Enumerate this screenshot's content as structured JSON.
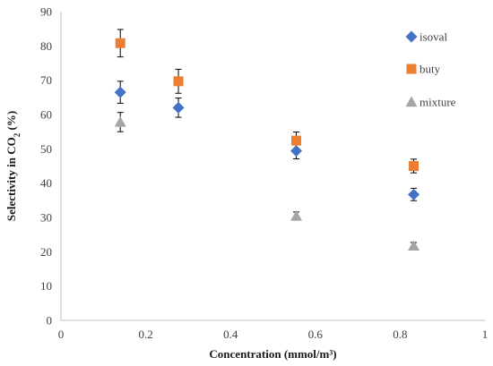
{
  "chart_data": {
    "type": "scatter",
    "xlabel": "Concentration (mmol/m³)",
    "ylabel_parts": [
      "Selectivity in CO",
      "2",
      " (%)"
    ],
    "xlim": [
      0,
      1
    ],
    "ylim": [
      0,
      90
    ],
    "x_ticks": [
      0,
      0.2,
      0.4,
      0.6,
      0.8,
      1
    ],
    "y_ticks": [
      0,
      10,
      20,
      30,
      40,
      50,
      60,
      70,
      80,
      90
    ],
    "x_tick_labels": [
      "0",
      "0.2",
      "0.4",
      "0.6",
      "0.8",
      "1"
    ],
    "y_tick_labels": [
      "0",
      "10",
      "20",
      "30",
      "40",
      "50",
      "60",
      "70",
      "80",
      "90"
    ],
    "grid": false,
    "legend_position": "top-right",
    "series": [
      {
        "name": "isoval",
        "marker": "diamond",
        "color": "#4472C4",
        "x": [
          0.14,
          0.277,
          0.555,
          0.832
        ],
        "y": [
          66.5,
          62.0,
          49.4,
          36.7
        ],
        "error": [
          3.2,
          2.8,
          2.3,
          1.8
        ]
      },
      {
        "name": "buty",
        "marker": "square",
        "color": "#ED7D31",
        "x": [
          0.14,
          0.277,
          0.555,
          0.832
        ],
        "y": [
          80.8,
          69.7,
          52.4,
          45.0
        ],
        "error": [
          4.0,
          3.5,
          2.5,
          2.0
        ]
      },
      {
        "name": "mixture",
        "marker": "triangle",
        "color": "#A5A5A5",
        "x": [
          0.14,
          0.555,
          0.832
        ],
        "y": [
          57.8,
          30.4,
          21.7
        ],
        "error": [
          2.8,
          1.2,
          1.0
        ]
      }
    ]
  }
}
